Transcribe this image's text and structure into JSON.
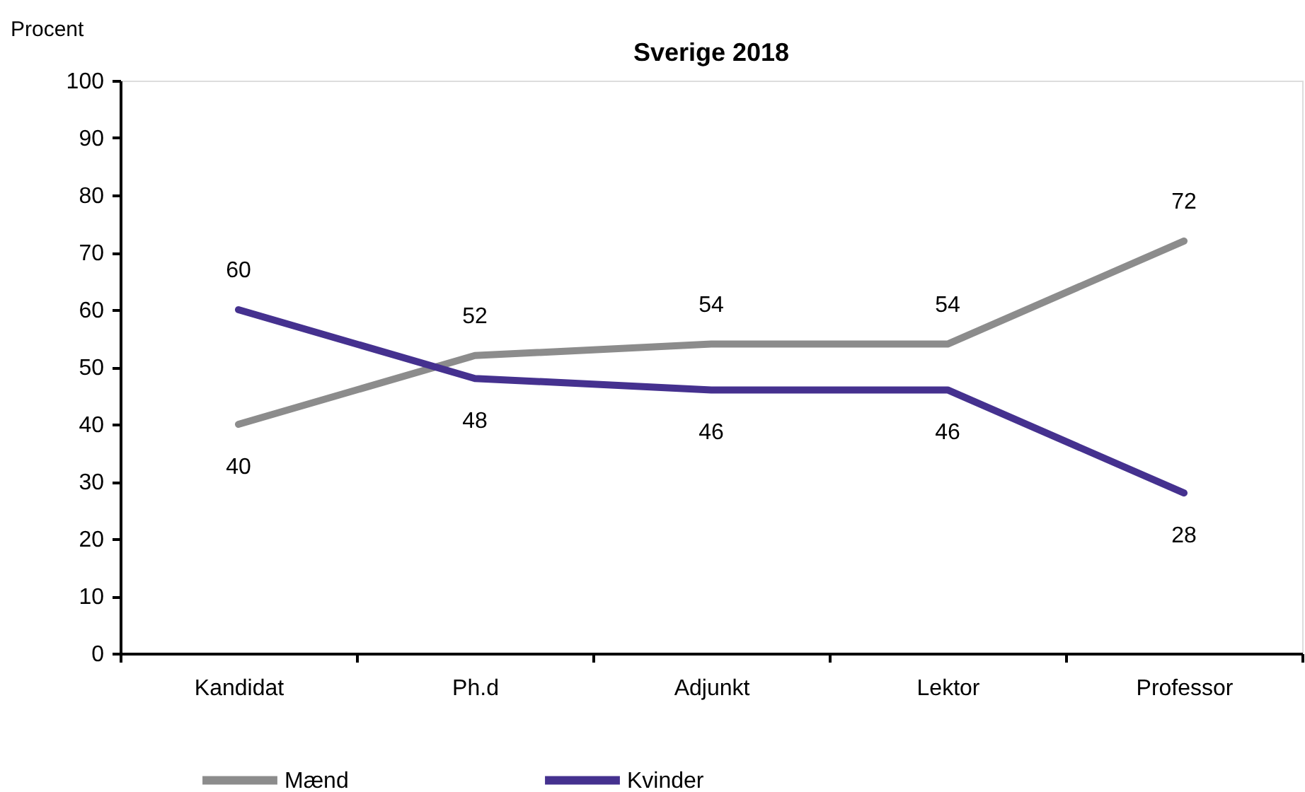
{
  "chart_data": {
    "type": "line",
    "title": "Sverige 2018",
    "ylabel": "Procent",
    "categories": [
      "Kandidat",
      "Ph.d",
      "Adjunkt",
      "Lektor",
      "Professor"
    ],
    "series": [
      {
        "name": "Mænd",
        "color": "#8c8c8c",
        "values": [
          40,
          52,
          54,
          54,
          72
        ]
      },
      {
        "name": "Kvinder",
        "color": "#45318f",
        "values": [
          60,
          48,
          46,
          46,
          28
        ]
      }
    ],
    "ylim": [
      0,
      100
    ],
    "yticks": [
      0,
      10,
      20,
      30,
      40,
      50,
      60,
      70,
      80,
      90,
      100
    ],
    "data_labels": true,
    "legend": "bottom",
    "grid": false,
    "line_style": "solid"
  }
}
